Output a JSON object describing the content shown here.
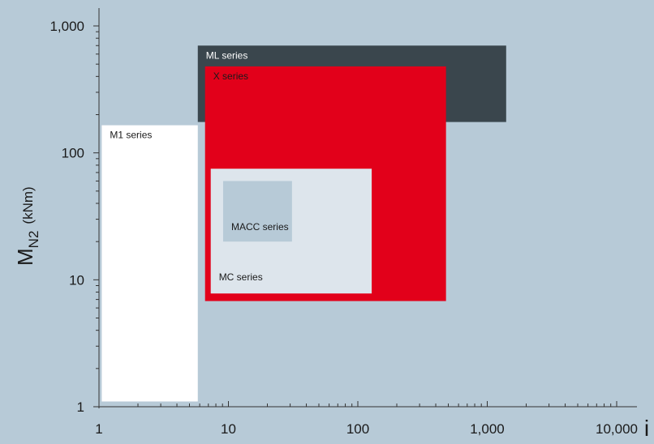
{
  "chart_data": {
    "type": "area",
    "title": "",
    "x_axis": {
      "label": "i",
      "scale": "log",
      "range": [
        1,
        10000
      ],
      "ticks": [
        1,
        10,
        100,
        1000,
        10000
      ],
      "tick_labels": [
        "1",
        "10",
        "100",
        "1,000",
        "10,000"
      ]
    },
    "y_axis": {
      "label_main": "M",
      "label_sub": "N2",
      "label_unit": "(kNm)",
      "scale": "log",
      "range": [
        1,
        1000
      ],
      "ticks": [
        1,
        10,
        100,
        1000
      ],
      "tick_labels": [
        "1",
        "10",
        "100",
        "1,000"
      ]
    },
    "series": [
      {
        "name": "ML series",
        "x": [
          5.8,
          1400
        ],
        "y": [
          175,
          700
        ],
        "color": "#3a464d",
        "label_color": "#ffffff"
      },
      {
        "name": "X series",
        "x": [
          6.6,
          480
        ],
        "y": [
          6.8,
          480
        ],
        "color": "#e2001a",
        "label_color": "#1a1a1a"
      },
      {
        "name": "M1 series",
        "x": [
          1.05,
          5.8
        ],
        "y": [
          1.1,
          165
        ],
        "color": "#ffffff",
        "label_color": "#1a1a1a"
      },
      {
        "name": "MC series",
        "x": [
          7.3,
          128
        ],
        "y": [
          7.8,
          75
        ],
        "color": "#dde5ec",
        "label_color": "#1a1a1a"
      },
      {
        "name": "MACC series",
        "x": [
          9.1,
          31
        ],
        "y": [
          20,
          60
        ],
        "color": "#b7cad7",
        "label_color": "#1a1a1a"
      }
    ],
    "grid": false,
    "legend": "none"
  }
}
